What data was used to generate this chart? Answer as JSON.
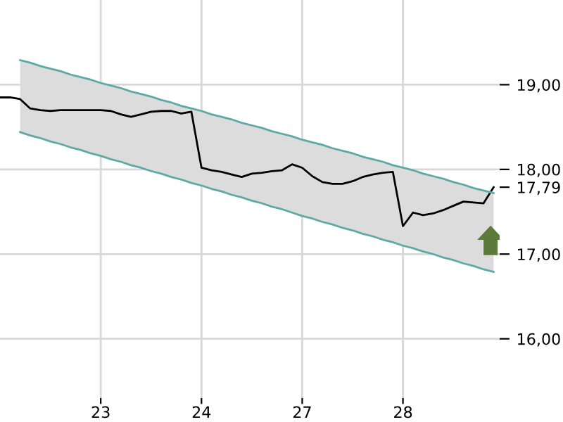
{
  "chart_data": {
    "type": "line",
    "categories": [
      null,
      null,
      null,
      null,
      null,
      null,
      null,
      null,
      null,
      null,
      "23",
      null,
      null,
      null,
      null,
      null,
      null,
      null,
      null,
      null,
      "24",
      null,
      null,
      null,
      null,
      null,
      null,
      null,
      null,
      null,
      "27",
      null,
      null,
      null,
      null,
      null,
      null,
      null,
      null,
      null,
      "28",
      null,
      null,
      null,
      null,
      null,
      null,
      null,
      null,
      null
    ],
    "series": [
      {
        "color": "#000000",
        "values": [
          18.85,
          18.85,
          18.83,
          18.72,
          18.7,
          18.69,
          18.7,
          18.7,
          18.7,
          18.7,
          18.7,
          18.69,
          18.65,
          18.62,
          18.65,
          18.68,
          18.69,
          18.69,
          18.66,
          18.68,
          18.02,
          17.99,
          17.97,
          17.94,
          17.91,
          17.95,
          17.96,
          17.98,
          17.99,
          18.06,
          18.02,
          17.92,
          17.85,
          17.83,
          17.83,
          17.86,
          17.91,
          17.94,
          17.96,
          17.97,
          17.33,
          17.49,
          17.46,
          17.48,
          17.52,
          17.57,
          17.62,
          17.61,
          17.6,
          17.79
        ]
      },
      {
        "color": "#5fa8a8",
        "values": [
          null,
          null,
          19.29,
          19.26,
          19.22,
          19.19,
          19.16,
          19.12,
          19.09,
          19.06,
          19.02,
          18.99,
          18.96,
          18.92,
          18.89,
          18.86,
          18.82,
          18.79,
          18.75,
          18.72,
          18.69,
          18.65,
          18.62,
          18.59,
          18.55,
          18.52,
          18.49,
          18.45,
          18.42,
          18.39,
          18.35,
          18.32,
          18.29,
          18.25,
          18.22,
          18.19,
          18.15,
          18.12,
          18.09,
          18.05,
          18.02,
          17.99,
          17.95,
          17.92,
          17.89,
          17.85,
          17.82,
          17.78,
          17.75,
          17.72
        ],
        "lower": [
          null,
          null,
          18.44,
          18.4,
          18.37,
          18.33,
          18.3,
          18.26,
          18.23,
          18.19,
          18.16,
          18.12,
          18.09,
          18.05,
          18.02,
          17.98,
          17.95,
          17.91,
          17.88,
          17.84,
          17.81,
          17.77,
          17.74,
          17.7,
          17.67,
          17.63,
          17.6,
          17.56,
          17.53,
          17.49,
          17.45,
          17.42,
          17.38,
          17.35,
          17.31,
          17.28,
          17.24,
          17.21,
          17.17,
          17.14,
          17.1,
          17.07,
          17.03,
          17.0,
          16.96,
          16.93,
          16.89,
          16.86,
          16.82,
          16.79
        ],
        "upper": [
          null,
          null,
          19.29,
          19.26,
          19.22,
          19.19,
          19.16,
          19.12,
          19.09,
          19.06,
          19.02,
          18.99,
          18.96,
          18.92,
          18.89,
          18.86,
          18.82,
          18.79,
          18.75,
          18.72,
          18.69,
          18.65,
          18.62,
          18.59,
          18.55,
          18.52,
          18.49,
          18.45,
          18.42,
          18.39,
          18.35,
          18.32,
          18.29,
          18.25,
          18.22,
          18.19,
          18.15,
          18.12,
          18.09,
          18.05,
          18.02,
          17.99,
          17.95,
          17.92,
          17.89,
          17.85,
          17.82,
          17.78,
          17.75,
          17.72
        ]
      },
      {
        "color": "#5fa8a8",
        "values": [
          null,
          null,
          18.44,
          18.4,
          18.37,
          18.33,
          18.3,
          18.26,
          18.23,
          18.19,
          18.16,
          18.12,
          18.09,
          18.05,
          18.02,
          17.98,
          17.95,
          17.91,
          17.88,
          17.84,
          17.81,
          17.77,
          17.74,
          17.7,
          17.67,
          17.63,
          17.6,
          17.56,
          17.53,
          17.49,
          17.45,
          17.42,
          17.38,
          17.35,
          17.31,
          17.28,
          17.24,
          17.21,
          17.17,
          17.14,
          17.1,
          17.07,
          17.03,
          17.0,
          16.96,
          16.93,
          16.89,
          16.86,
          16.82,
          16.79
        ]
      }
    ],
    "ylim": [
      15.3,
      20.0
    ],
    "yticks": [
      {
        "value": 16,
        "label": "16,00"
      },
      {
        "value": 17,
        "label": "17,00"
      },
      {
        "value": 17.79,
        "label": "17,79"
      },
      {
        "value": 18,
        "label": "18,00"
      },
      {
        "value": 19,
        "label": "19,00"
      }
    ],
    "grid": true
  }
}
